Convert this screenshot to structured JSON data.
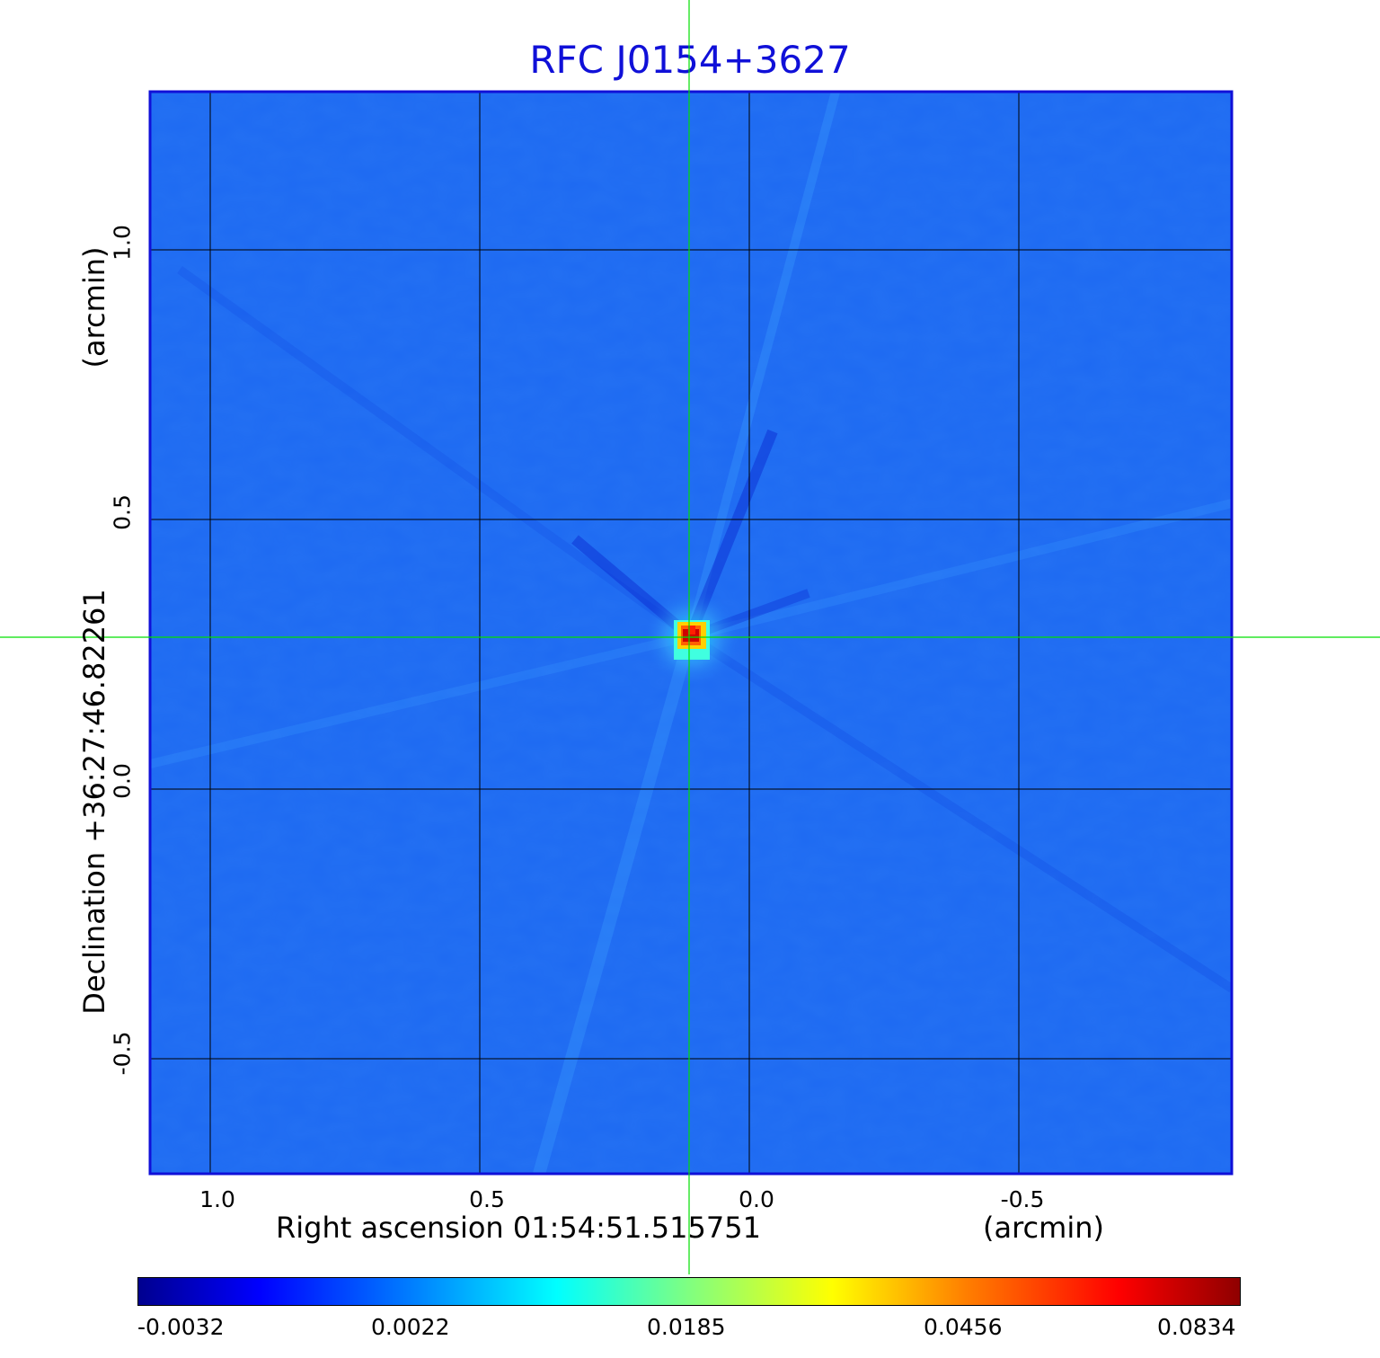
{
  "title": "RFC J0154+3627",
  "x_axis": {
    "label": "Right ascension  01:54:51.515751",
    "unit": "(arcmin)",
    "ticks": [
      "1.0",
      "0.5",
      "0.0",
      "-0.5"
    ]
  },
  "y_axis": {
    "label": "Declination  +36:27:46.82261",
    "unit": "(arcmin)",
    "ticks": [
      "1.0",
      "0.5",
      "0.0",
      "-0.5"
    ]
  },
  "colorbar": {
    "ticks": [
      "-0.0032",
      "0.0022",
      "0.0185",
      "0.0456",
      "0.0834"
    ],
    "colors": [
      "#00008f",
      "#0000ff",
      "#0080ff",
      "#00ffff",
      "#80ff80",
      "#ffff00",
      "#ff8000",
      "#ff0000",
      "#8f0000"
    ]
  },
  "colors": {
    "title": "#1010d8",
    "frame": "#1010d8",
    "background_field": "#1e6af2",
    "crosshair": "#00e000",
    "grid": "#000000"
  },
  "source": {
    "ra_offset_arcmin": 0.11,
    "dec_offset_arcmin": 0.28,
    "peak_value": 0.0834
  }
}
